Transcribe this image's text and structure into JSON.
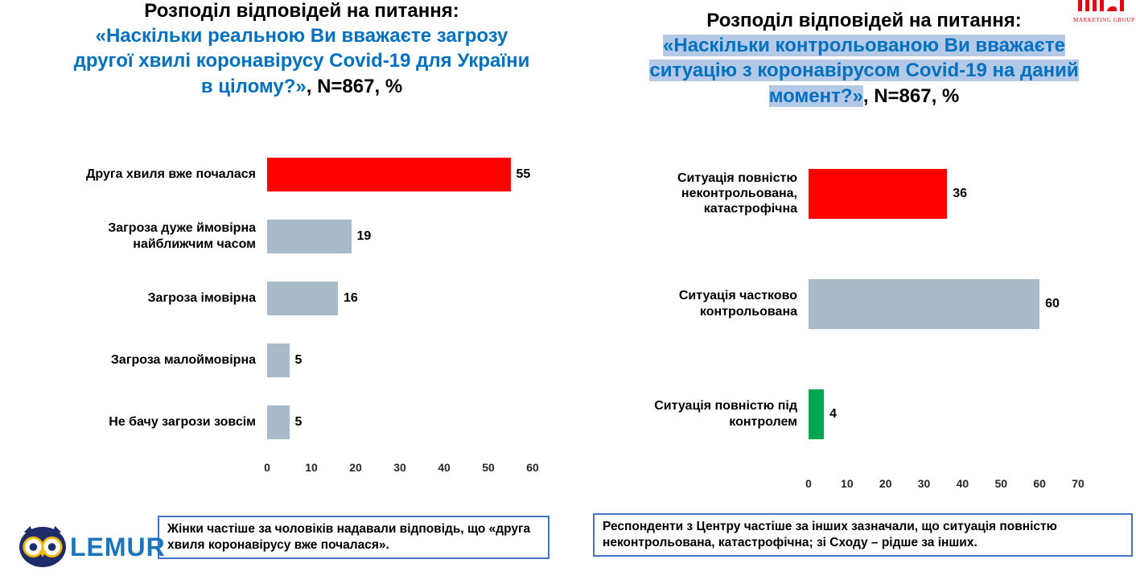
{
  "partner": {
    "subtitle": "MARKETING GROUP",
    "color": "#e30613"
  },
  "lemur": {
    "label": "LEMUR",
    "color": "#1b75bc"
  },
  "colors": {
    "question_blue": "#0070c0",
    "highlight_blue": "#b4c9e6",
    "note_border": "#4472c4",
    "bar_red": "#ff0000",
    "bar_gray": "#a9bacb",
    "bar_green": "#00a551"
  },
  "chart_data": [
    {
      "type": "bar",
      "orientation": "horizontal",
      "title_prefix": "Розподіл відповідей на питання:",
      "title_question": "«Наскільки реальною Ви вважаєте загрозу\nдругої хвилі коронавірусу Covid-19 для України\nв цілому?»",
      "title_suffix": ", N=867, %",
      "title_highlighted": false,
      "categories": [
        "Друга хвиля вже почалася",
        "Загроза дуже ймовірна найближчим часом",
        "Загроза імовірна",
        "Загроза малоймовірна",
        "Не бачу загрози зовсім"
      ],
      "values": [
        55,
        19,
        16,
        5,
        5
      ],
      "bar_colors": [
        "#ff0000",
        "#a9bacb",
        "#a9bacb",
        "#a9bacb",
        "#a9bacb"
      ],
      "axis": {
        "min": 0,
        "max": 60,
        "ticks": [
          0,
          10,
          20,
          30,
          40,
          50,
          60
        ]
      },
      "legend": "none",
      "grid": false,
      "note": "Жінки частіше за чоловіків надавали відповідь, що «друга хвиля коронавірусу вже почалася»."
    },
    {
      "type": "bar",
      "orientation": "horizontal",
      "title_prefix": "Розподіл відповідей на питання:",
      "title_question": "«Наскільки контрольованою Ви вважаєте\nситуацію з коронавірусом Covid-19 на даний\nмомент?»",
      "title_suffix": ", N=867, %",
      "title_highlighted": true,
      "categories": [
        "Ситуація повністю неконтрольована, катастрофічна",
        "Ситуація частково контрольована",
        "Ситуація повністю під контролем"
      ],
      "values": [
        36,
        60,
        4
      ],
      "bar_colors": [
        "#ff0000",
        "#a9bacb",
        "#00a551"
      ],
      "axis": {
        "min": 0,
        "max": 70,
        "ticks": [
          0,
          10,
          20,
          30,
          40,
          50,
          60,
          70
        ]
      },
      "legend": "none",
      "grid": false,
      "note": "Респонденти з Центру частіше за інших зазначали, що ситуація повністю неконтрольована, катастрофічна; зі Сходу – рідше за інших."
    }
  ]
}
